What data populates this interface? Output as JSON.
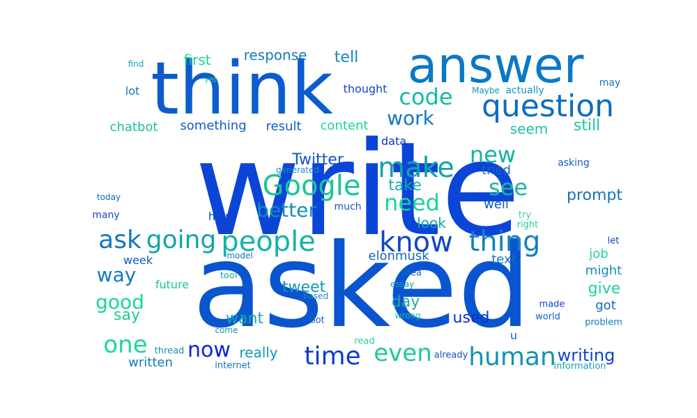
{
  "palette": {
    "dark_blue": "#0f2fd6",
    "blue": "#1356c8",
    "mid_blue": "#1f78c4",
    "teal": "#19a3a0",
    "green": "#24d38f",
    "light_green": "#3ed88a"
  },
  "words": [
    {
      "t": "write",
      "c": "#0b45d8"
    },
    {
      "t": "asked",
      "c": "#0a55cf"
    },
    {
      "t": "think",
      "c": "#0b5ccc"
    },
    {
      "t": "answer",
      "c": "#0b78c5"
    },
    {
      "t": "question",
      "c": "#0d6cc4"
    },
    {
      "t": "Google",
      "c": "#18c49a"
    },
    {
      "t": "people",
      "c": "#12b3a4"
    },
    {
      "t": "make",
      "c": "#13a4a9"
    },
    {
      "t": "know",
      "c": "#1046c8"
    },
    {
      "t": "thing",
      "c": "#1282c0"
    },
    {
      "t": "ask",
      "c": "#1177c2"
    },
    {
      "t": "going",
      "c": "#12a4a8"
    },
    {
      "t": "human",
      "c": "#1393b1"
    },
    {
      "t": "time",
      "c": "#0d3ccc"
    },
    {
      "t": "now",
      "c": "#0a25d6"
    },
    {
      "t": "one",
      "c": "#1dd796"
    },
    {
      "t": "even",
      "c": "#1cc99a"
    },
    {
      "t": "code",
      "c": "#13bda3"
    },
    {
      "t": "new",
      "c": "#14b2a6"
    },
    {
      "t": "need",
      "c": "#18d39a"
    },
    {
      "t": "see",
      "c": "#15b8a5"
    },
    {
      "t": "better",
      "c": "#1190b8"
    },
    {
      "t": "work",
      "c": "#1176bd"
    },
    {
      "t": "good",
      "c": "#1cd498"
    },
    {
      "t": "way",
      "c": "#1279c0"
    },
    {
      "t": "writing",
      "c": "#0d45cf"
    },
    {
      "t": "Twitter",
      "c": "#1152c4"
    },
    {
      "t": "response",
      "c": "#117abf"
    },
    {
      "t": "tell",
      "c": "#1685bb"
    },
    {
      "t": "first",
      "c": "#18d39c"
    },
    {
      "t": "prompt",
      "c": "#1473bf"
    },
    {
      "t": "take",
      "c": "#13b0ab"
    },
    {
      "t": "say",
      "c": "#1ec99a"
    },
    {
      "t": "chatbot",
      "c": "#18c09f"
    },
    {
      "t": "something",
      "c": "#135bc4"
    },
    {
      "t": "result",
      "c": "#115ec2"
    },
    {
      "t": "content",
      "c": "#1ad39b"
    },
    {
      "t": "seem",
      "c": "#19c6a0"
    },
    {
      "t": "still",
      "c": "#18c9a0"
    },
    {
      "t": "data",
      "c": "#0d2fcf"
    },
    {
      "t": "tried",
      "c": "#1165c2"
    },
    {
      "t": "well",
      "c": "#1157c4"
    },
    {
      "t": "look",
      "c": "#14a8ac"
    },
    {
      "t": "elonmusk",
      "c": "#1467bf"
    },
    {
      "t": "tweet",
      "c": "#1495b5"
    },
    {
      "t": "want",
      "c": "#15a7ad"
    },
    {
      "t": "day",
      "c": "#18b0a5"
    },
    {
      "t": "used",
      "c": "#0d2fd2"
    },
    {
      "t": "give",
      "c": "#1bd09c"
    },
    {
      "t": "got",
      "c": "#1167c2"
    },
    {
      "t": "job",
      "c": "#1bd49b"
    },
    {
      "t": "might",
      "c": "#148cbb"
    },
    {
      "t": "text",
      "c": "#1273c0"
    },
    {
      "t": "week",
      "c": "#1158c4"
    },
    {
      "t": "future",
      "c": "#19c99e"
    },
    {
      "t": "really",
      "c": "#1196b8"
    },
    {
      "t": "written",
      "c": "#117ac0"
    },
    {
      "t": "help",
      "c": "#1246c8"
    },
    {
      "t": "much",
      "c": "#1456c6"
    },
    {
      "t": "lot",
      "c": "#1376c0"
    },
    {
      "t": "thought",
      "c": "#1046c8"
    },
    {
      "t": "find",
      "c": "#1aa0af"
    },
    {
      "t": "yet",
      "c": "#3ed88a"
    },
    {
      "t": "Maybe",
      "c": "#1696b8"
    },
    {
      "t": "actually",
      "c": "#1693b8"
    },
    {
      "t": "may",
      "c": "#1477c2"
    },
    {
      "t": "asking",
      "c": "#1262c4"
    },
    {
      "t": "generated",
      "c": "#1590b8"
    },
    {
      "t": "today",
      "c": "#1268c4"
    },
    {
      "t": "many",
      "c": "#1248c8"
    },
    {
      "t": "try",
      "c": "#3dd78e"
    },
    {
      "t": "right",
      "c": "#1fcd9a"
    },
    {
      "t": "let",
      "c": "#1242c8"
    },
    {
      "t": "model",
      "c": "#1474c0"
    },
    {
      "t": "tool",
      "c": "#1a9eb1"
    },
    {
      "t": "idea",
      "c": "#1262c4"
    },
    {
      "t": "essay",
      "c": "#19a0b0"
    },
    {
      "t": "based",
      "c": "#1688bb"
    },
    {
      "t": "wrong",
      "c": "#1abba5"
    },
    {
      "t": "come",
      "c": "#1694b5"
    },
    {
      "t": "bot",
      "c": "#1160c4"
    },
    {
      "t": "read",
      "c": "#21d492"
    },
    {
      "t": "thread",
      "c": "#1590b8"
    },
    {
      "t": "internet",
      "c": "#1274c0"
    },
    {
      "t": "already",
      "c": "#1153c6"
    },
    {
      "t": "u",
      "c": "#1268c4"
    },
    {
      "t": "made",
      "c": "#1246c8"
    },
    {
      "t": "world",
      "c": "#1162c4"
    },
    {
      "t": "problem",
      "c": "#147cbf"
    },
    {
      "t": "information",
      "c": "#1b9db2"
    }
  ]
}
